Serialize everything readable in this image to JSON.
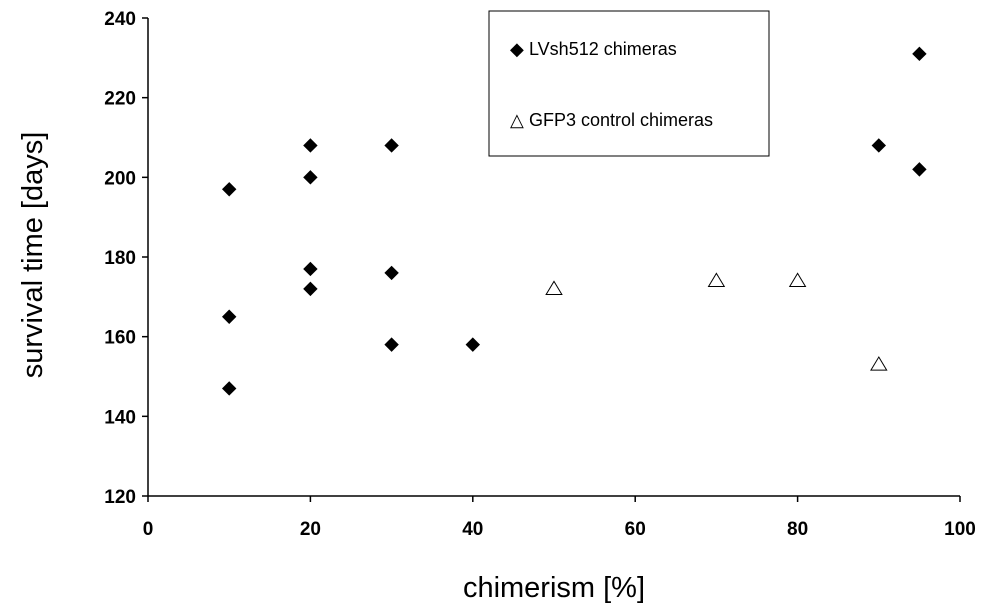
{
  "chart_data": {
    "type": "scatter",
    "title": "",
    "xlabel": "chimerism [%]",
    "ylabel": "survival time [days]",
    "xlim": [
      0,
      100
    ],
    "ylim": [
      120,
      240
    ],
    "xticks": [
      0,
      20,
      40,
      60,
      80,
      100
    ],
    "yticks": [
      120,
      140,
      160,
      180,
      200,
      220,
      240
    ],
    "grid": false,
    "legend_position": "top-right",
    "series": [
      {
        "name": "LVsh512 chimeras",
        "marker": "filled-diamond",
        "color": "#000000",
        "legend_symbol": "◆",
        "points": [
          {
            "x": 10,
            "y": 197
          },
          {
            "x": 10,
            "y": 165
          },
          {
            "x": 10,
            "y": 147
          },
          {
            "x": 20,
            "y": 208
          },
          {
            "x": 20,
            "y": 200
          },
          {
            "x": 20,
            "y": 177
          },
          {
            "x": 20,
            "y": 172
          },
          {
            "x": 30,
            "y": 208
          },
          {
            "x": 30,
            "y": 176
          },
          {
            "x": 30,
            "y": 158
          },
          {
            "x": 40,
            "y": 158
          },
          {
            "x": 90,
            "y": 208
          },
          {
            "x": 95,
            "y": 231
          },
          {
            "x": 95,
            "y": 202
          }
        ]
      },
      {
        "name": "GFP3 control chimeras",
        "marker": "open-triangle",
        "color": "#000000",
        "legend_symbol": "△",
        "points": [
          {
            "x": 50,
            "y": 172
          },
          {
            "x": 70,
            "y": 174
          },
          {
            "x": 80,
            "y": 174
          },
          {
            "x": 90,
            "y": 153
          }
        ]
      }
    ]
  }
}
